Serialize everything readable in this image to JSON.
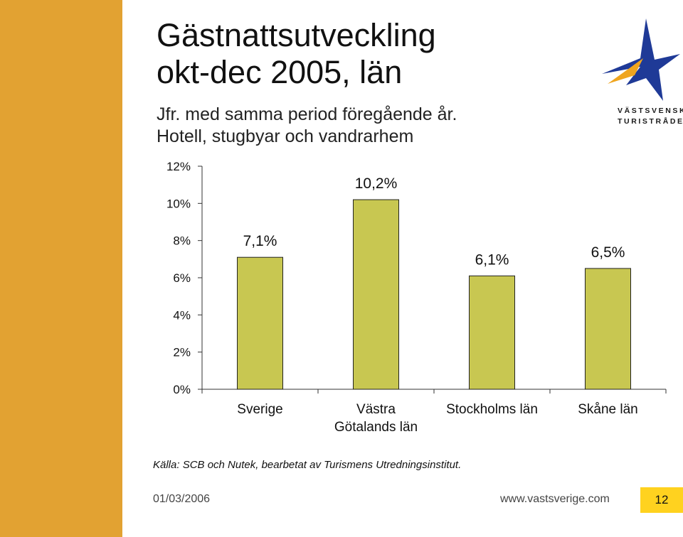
{
  "theme": {
    "sidebar_color": "#E2A232",
    "bar_color": "#C8C751",
    "bar_stroke": "#222222",
    "page_box_color": "#FFD21F",
    "logo_blue": "#1F3A97",
    "logo_orange": "#EFA51F"
  },
  "slide": {
    "title_line1": "Gästnattsutveckling",
    "title_line2": "okt-dec 2005, län",
    "subtitle_line1": "Jfr. med samma period föregående år.",
    "subtitle_line2": "Hotell, stugbyar och vandrarhem"
  },
  "logo": {
    "icon": "star-compass-icon",
    "line1": "VÄSTSVENSKA",
    "line2": "TURISTRÅDET"
  },
  "chart_data": {
    "type": "bar",
    "categories": [
      "Sverige",
      "Västra Götalands län",
      "Stockholms län",
      "Skåne län"
    ],
    "category_lines": [
      [
        "Sverige"
      ],
      [
        "Västra",
        "Götalands län"
      ],
      [
        "Stockholms län"
      ],
      [
        "Skåne län"
      ]
    ],
    "values": [
      7.1,
      10.2,
      6.1,
      6.5
    ],
    "data_labels": [
      "7,1%",
      "10,2%",
      "6,1%",
      "6,5%"
    ],
    "yticks": [
      0,
      2,
      4,
      6,
      8,
      10,
      12
    ],
    "ytick_labels": [
      "0%",
      "2%",
      "4%",
      "6%",
      "8%",
      "10%",
      "12%"
    ],
    "ylim": [
      0,
      12
    ],
    "grid": false,
    "legend": "none"
  },
  "footer": {
    "source": "Källa: SCB och Nutek, bearbetat av Turismens Utredningsinstitut.",
    "date": "01/03/2006",
    "url": "www.vastsverige.com",
    "page_number": "12"
  }
}
